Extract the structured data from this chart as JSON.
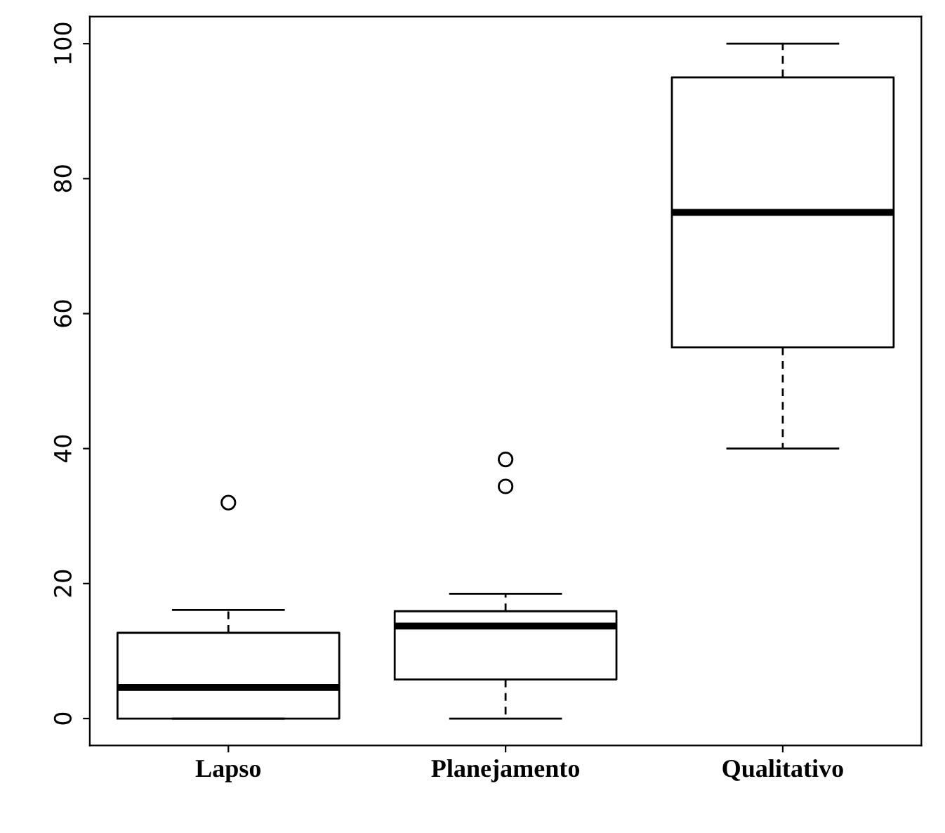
{
  "chart_data": {
    "type": "box",
    "categories": [
      "Lapso",
      "Planejamento",
      "Qualitativo"
    ],
    "boxes": [
      {
        "low": 0,
        "q1": 0,
        "median": 4.6,
        "q3": 12.7,
        "high": 16.1,
        "outliers": [
          32
        ]
      },
      {
        "low": 0,
        "q1": 5.8,
        "median": 13.7,
        "q3": 15.9,
        "high": 18.5,
        "outliers": [
          34.4,
          38.4
        ]
      },
      {
        "low": 40,
        "q1": 55,
        "median": 75,
        "q3": 95,
        "high": 100
      }
    ],
    "ylim": [
      -4,
      104
    ],
    "yticks": [
      0,
      20,
      40,
      60,
      80,
      100
    ],
    "grid": false,
    "legend": false
  }
}
